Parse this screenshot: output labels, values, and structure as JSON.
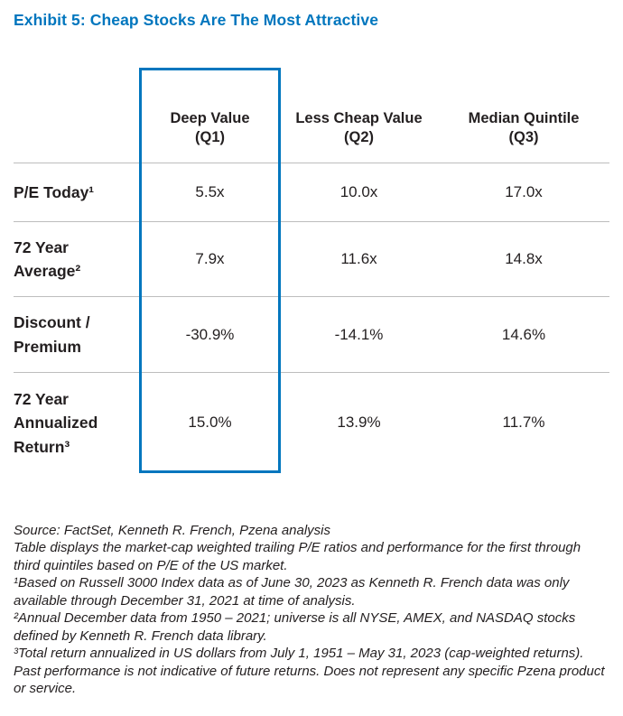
{
  "title": "Exhibit 5: Cheap Stocks Are The Most Attractive",
  "colors": {
    "accent_blue": "#0076BE",
    "text": "#231F20",
    "grid_line": "#BDBDBD",
    "background": "#FFFFFF"
  },
  "chart_data": {
    "type": "table",
    "title": "Exhibit 5: Cheap Stocks Are The Most Attractive",
    "columns": [
      {
        "label": "Deep Value",
        "sub": "(Q1)"
      },
      {
        "label": "Less Cheap Value",
        "sub": "(Q2)"
      },
      {
        "label": "Median Quintile",
        "sub": "(Q3)"
      }
    ],
    "rows": [
      {
        "label": "P/E Today¹",
        "values": [
          "5.5x",
          "10.0x",
          "17.0x"
        ]
      },
      {
        "label": "72 Year Average²",
        "values": [
          "7.9x",
          "11.6x",
          "14.8x"
        ]
      },
      {
        "label": "Discount / Premium",
        "values": [
          "-30.9%",
          "-14.1%",
          "14.6%"
        ]
      },
      {
        "label": "72 Year Annualized Return³",
        "values": [
          "15.0%",
          "13.9%",
          "11.7%"
        ]
      }
    ],
    "highlight": {
      "column": "Deep Value (Q1)",
      "border_color": "#0076BE"
    }
  },
  "footnotes": [
    "Source: FactSet, Kenneth R. French, Pzena analysis",
    "Table displays the market-cap weighted trailing P/E ratios and performance for the first through third quintiles based on P/E of the US market.",
    "¹Based on Russell 3000 Index data as of June 30, 2023 as Kenneth R. French data was only available through December 31, 2021 at time of analysis.",
    "²Annual December data from 1950 – 2021; universe is all NYSE, AMEX, and NASDAQ stocks defined by Kenneth R. French data library.",
    "³Total return annualized in US dollars from July 1, 1951 – May 31, 2023 (cap-weighted returns). Past performance is not indicative of future returns. Does not represent any specific Pzena product or service."
  ]
}
